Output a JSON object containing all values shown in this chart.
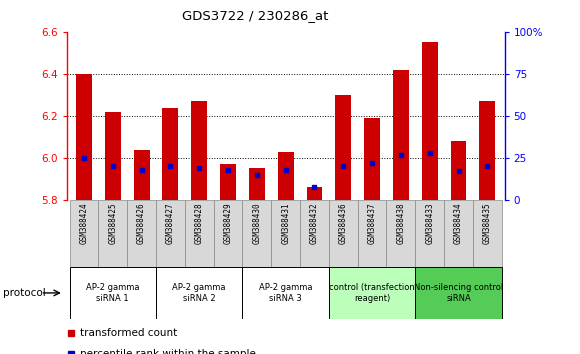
{
  "title": "GDS3722 / 230286_at",
  "samples": [
    "GSM388424",
    "GSM388425",
    "GSM388426",
    "GSM388427",
    "GSM388428",
    "GSM388429",
    "GSM388430",
    "GSM388431",
    "GSM388432",
    "GSM388436",
    "GSM388437",
    "GSM388438",
    "GSM388433",
    "GSM388434",
    "GSM388435"
  ],
  "transformed_counts": [
    6.4,
    6.22,
    6.04,
    6.24,
    6.27,
    5.97,
    5.95,
    6.03,
    5.86,
    6.3,
    6.19,
    6.42,
    6.55,
    6.08,
    6.27
  ],
  "percentile_ranks": [
    25,
    20,
    18,
    20,
    19,
    18,
    15,
    18,
    8,
    20,
    22,
    27,
    28,
    17,
    20
  ],
  "ymin": 5.8,
  "ymax": 6.6,
  "y2min": 0,
  "y2max": 100,
  "yticks": [
    5.8,
    6.0,
    6.2,
    6.4,
    6.6
  ],
  "y2ticks": [
    0,
    25,
    50,
    75,
    100
  ],
  "bar_color": "#cc0000",
  "percentile_color": "#0000cc",
  "groups": [
    {
      "label": "AP-2 gamma\nsiRNA 1",
      "indices": [
        0,
        1,
        2
      ],
      "color": "#ffffff"
    },
    {
      "label": "AP-2 gamma\nsiRNA 2",
      "indices": [
        3,
        4,
        5
      ],
      "color": "#ffffff"
    },
    {
      "label": "AP-2 gamma\nsiRNA 3",
      "indices": [
        6,
        7,
        8
      ],
      "color": "#ffffff"
    },
    {
      "label": "control (transfection\nreagent)",
      "indices": [
        9,
        10,
        11
      ],
      "color": "#bbffbb"
    },
    {
      "label": "Non-silencing control\nsiRNA",
      "indices": [
        12,
        13,
        14
      ],
      "color": "#55cc55"
    }
  ],
  "protocol_label": "protocol",
  "legend_transformed": "transformed count",
  "legend_percentile": "percentile rank within the sample",
  "sample_bg": "#d8d8d8",
  "grid_dotted_color": "black",
  "grid_yticks": [
    6.0,
    6.2,
    6.4
  ]
}
